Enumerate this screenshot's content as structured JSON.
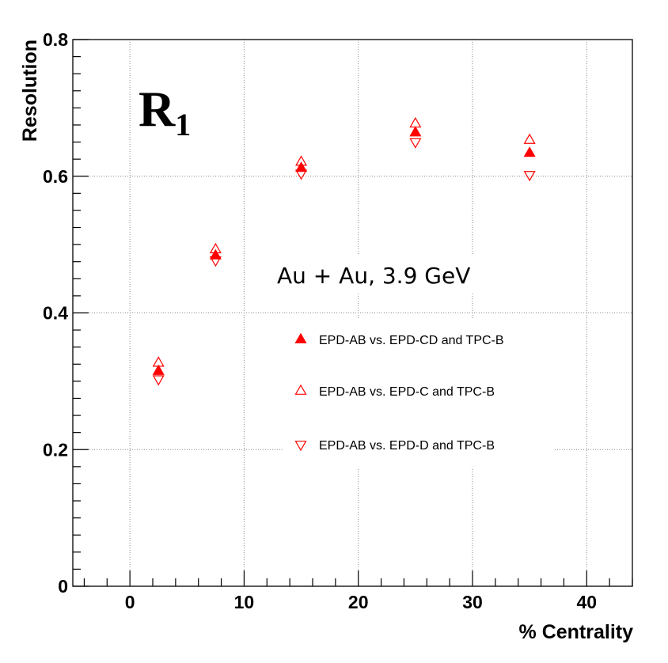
{
  "chart_data": {
    "type": "scatter",
    "xlabel": "% Centrality",
    "ylabel": "Resolution",
    "xlim": [
      -5,
      44
    ],
    "ylim": [
      0,
      0.8
    ],
    "x_ticks": [
      0,
      10,
      20,
      30,
      40
    ],
    "y_ticks": [
      0,
      0.2,
      0.4,
      0.6,
      0.8
    ],
    "x_tick_labels": [
      "0",
      "10",
      "20",
      "30",
      "40"
    ],
    "y_tick_labels": [
      "0",
      "0.2",
      "0.4",
      "0.6",
      "0.8"
    ],
    "grid": true,
    "label_main": "R",
    "label_sub": "1",
    "annotation": "Au + Au, 3.9 GeV",
    "legend_position": "center-right",
    "series": [
      {
        "name": "EPD-AB vs. EPD-CD and TPC-B",
        "marker": "triangle-up-filled",
        "color": "#ff0000",
        "x": [
          2.5,
          7.5,
          15,
          25,
          35
        ],
        "y": [
          0.315,
          0.484,
          0.612,
          0.664,
          0.634
        ]
      },
      {
        "name": "EPD-AB vs. EPD-C and TPC-B",
        "marker": "triangle-up-open",
        "color": "#ff0000",
        "x": [
          2.5,
          7.5,
          15,
          25,
          35
        ],
        "y": [
          0.327,
          0.493,
          0.621,
          0.677,
          0.653
        ]
      },
      {
        "name": "EPD-AB vs. EPD-D and TPC-B",
        "marker": "triangle-down-open",
        "color": "#ff0000",
        "x": [
          2.5,
          7.5,
          15,
          25,
          35
        ],
        "y": [
          0.303,
          0.477,
          0.604,
          0.65,
          0.602
        ]
      }
    ]
  }
}
